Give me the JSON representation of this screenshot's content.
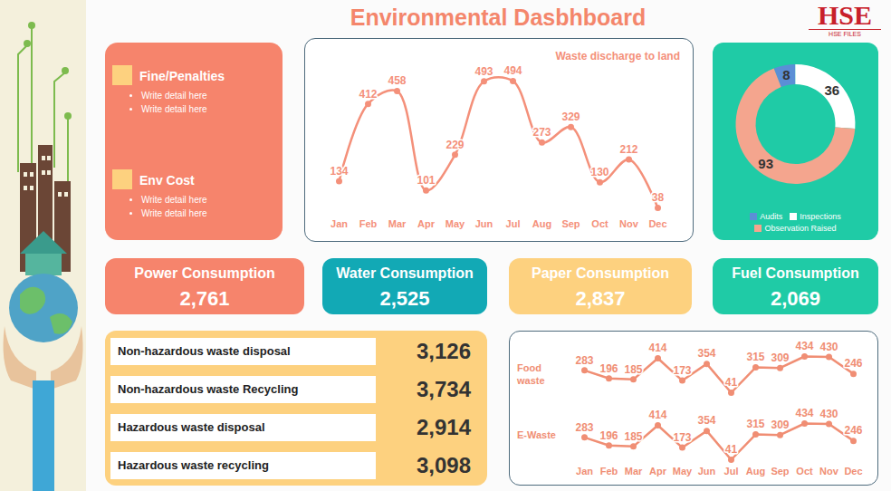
{
  "title": "Environmental Dasbhboard",
  "logo": {
    "text": "HSE",
    "subtext": "HSE FILES"
  },
  "notes": [
    {
      "heading": "Fine/Penalties",
      "items": [
        "Write detail here",
        "Write detail here"
      ]
    },
    {
      "heading": "Env Cost",
      "items": [
        "Write detail here",
        "Write detail here"
      ]
    }
  ],
  "consumption": [
    {
      "label": "Power Consumption",
      "value": 2761
    },
    {
      "label": "Water Consumption",
      "value": 2525
    },
    {
      "label": "Paper Consumption",
      "value": 2837
    },
    {
      "label": "Fuel Consumption",
      "value": 2069
    }
  ],
  "waste": [
    {
      "label": "Non-hazardous waste disposal",
      "value": 3126
    },
    {
      "label": "Non-hazardous waste Recycling",
      "value": 3734
    },
    {
      "label": "Hazardous waste disposal",
      "value": 2914
    },
    {
      "label": "Hazardous waste recycling",
      "value": 3098
    }
  ],
  "chart_data": [
    {
      "type": "line",
      "title": "Waste discharge to land",
      "categories": [
        "Jan",
        "Feb",
        "Mar",
        "Apr",
        "May",
        "Jun",
        "Jul",
        "Aug",
        "Sep",
        "Oct",
        "Nov",
        "Dec"
      ],
      "values": [
        134,
        412,
        458,
        101,
        229,
        493,
        494,
        273,
        329,
        130,
        212,
        38
      ],
      "color": "#f4907a",
      "marker": "circle",
      "line_style": "smooth",
      "data_labels": true,
      "tick_labels": "x"
    },
    {
      "type": "donut",
      "categories": [
        "Audits",
        "Inspections",
        "Observation Raised"
      ],
      "values": [
        8,
        36,
        93
      ],
      "colors": [
        "#5b8fd6",
        "#ffffff",
        "#f4a58e"
      ],
      "data_labels": true,
      "legend": "bottom"
    },
    {
      "type": "line",
      "categories": [
        "Jan",
        "Feb",
        "Mar",
        "Apr",
        "May",
        "Jun",
        "Jul",
        "Aug",
        "Sep",
        "Oct",
        "Nov",
        "Dec"
      ],
      "series": [
        {
          "name": "Food waste",
          "color": "#f08e74",
          "values": [
            283,
            196,
            185,
            414,
            173,
            354,
            41,
            315,
            309,
            434,
            430,
            246
          ]
        },
        {
          "name": "E-Waste",
          "color": "#f08e74",
          "values": [
            283,
            196,
            185,
            414,
            173,
            354,
            41,
            315,
            309,
            434,
            430,
            246
          ]
        }
      ],
      "marker": "circle",
      "line_style": "solid",
      "data_labels": true,
      "tick_labels": "x"
    }
  ]
}
